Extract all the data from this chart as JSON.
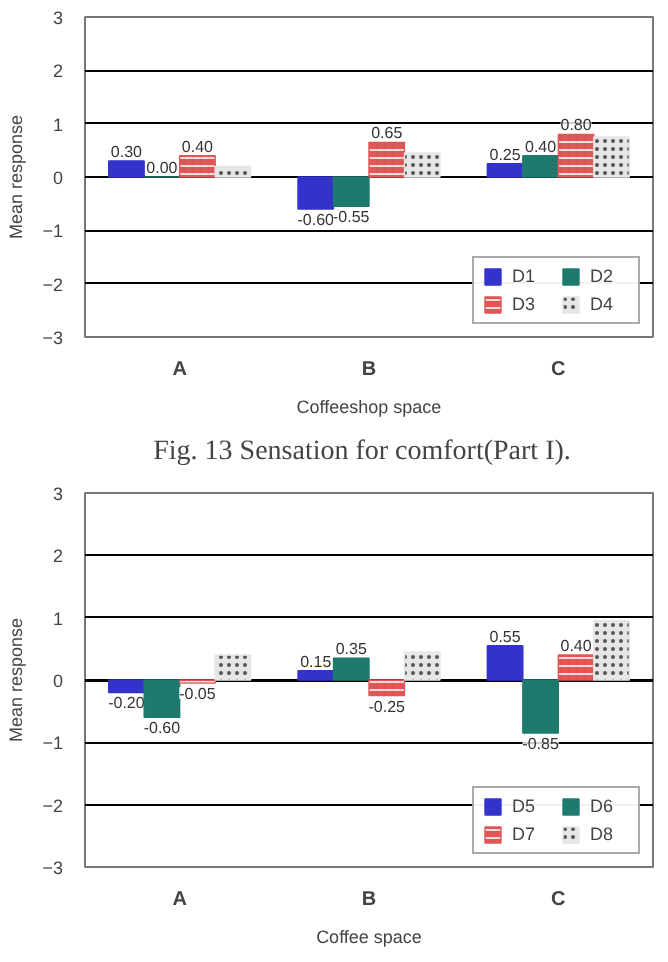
{
  "chart_data": [
    {
      "type": "bar",
      "categories": [
        "A",
        "B",
        "C"
      ],
      "xlabel": "Coffeeshop space",
      "ylabel": "Mean response",
      "ylim": [
        -3,
        3
      ],
      "yticks": [
        -3,
        -2,
        -1,
        0,
        1,
        2,
        3
      ],
      "grid": "y",
      "legend": "bottom right",
      "series": [
        {
          "name": "D1",
          "color": "#3333cc",
          "values": [
            0.3,
            -0.6,
            0.25
          ],
          "value_labels": [
            "0.30",
            "-0.60",
            "0.25"
          ]
        },
        {
          "name": "D2",
          "color": "#1f7a6e",
          "values": [
            0.0,
            -0.55,
            0.4
          ],
          "value_labels": [
            "0.00",
            "-0.55",
            "0.40"
          ]
        },
        {
          "name": "D3",
          "color": "#e05555",
          "values": [
            0.4,
            0.65,
            0.8
          ],
          "value_labels": [
            "0.40",
            "0.65",
            "0.80"
          ]
        },
        {
          "name": "D4",
          "color": "#e6e6e6",
          "values": [
            0.2,
            0.45,
            0.75
          ],
          "value_labels": [
            null,
            null,
            null
          ]
        }
      ],
      "annotations": [
        "Fig. 13   Sensation for comfort(Part I)."
      ]
    },
    {
      "type": "bar",
      "categories": [
        "A",
        "B",
        "C"
      ],
      "xlabel": "Coffee space",
      "ylabel": "Mean response",
      "ylim": [
        -3,
        3
      ],
      "yticks": [
        -3,
        -2,
        -1,
        0,
        1,
        2,
        3
      ],
      "grid": "y",
      "legend": "bottom right",
      "series": [
        {
          "name": "D5",
          "color": "#3333cc",
          "values": [
            -0.2,
            0.15,
            0.55
          ],
          "value_labels": [
            "-0.20",
            "0.15",
            "0.55"
          ]
        },
        {
          "name": "D6",
          "color": "#1f7a6e",
          "values": [
            -0.6,
            0.35,
            -0.85
          ],
          "value_labels": [
            "-0.60",
            "0.35",
            "-0.85"
          ]
        },
        {
          "name": "D7",
          "color": "#e05555",
          "values": [
            -0.05,
            -0.25,
            0.4
          ],
          "value_labels": [
            "-0.05",
            "-0.25",
            "0.40"
          ]
        },
        {
          "name": "D8",
          "color": "#e6e6e6",
          "values": [
            0.4,
            0.45,
            0.95
          ],
          "value_labels": [
            null,
            null,
            null
          ]
        }
      ]
    }
  ]
}
